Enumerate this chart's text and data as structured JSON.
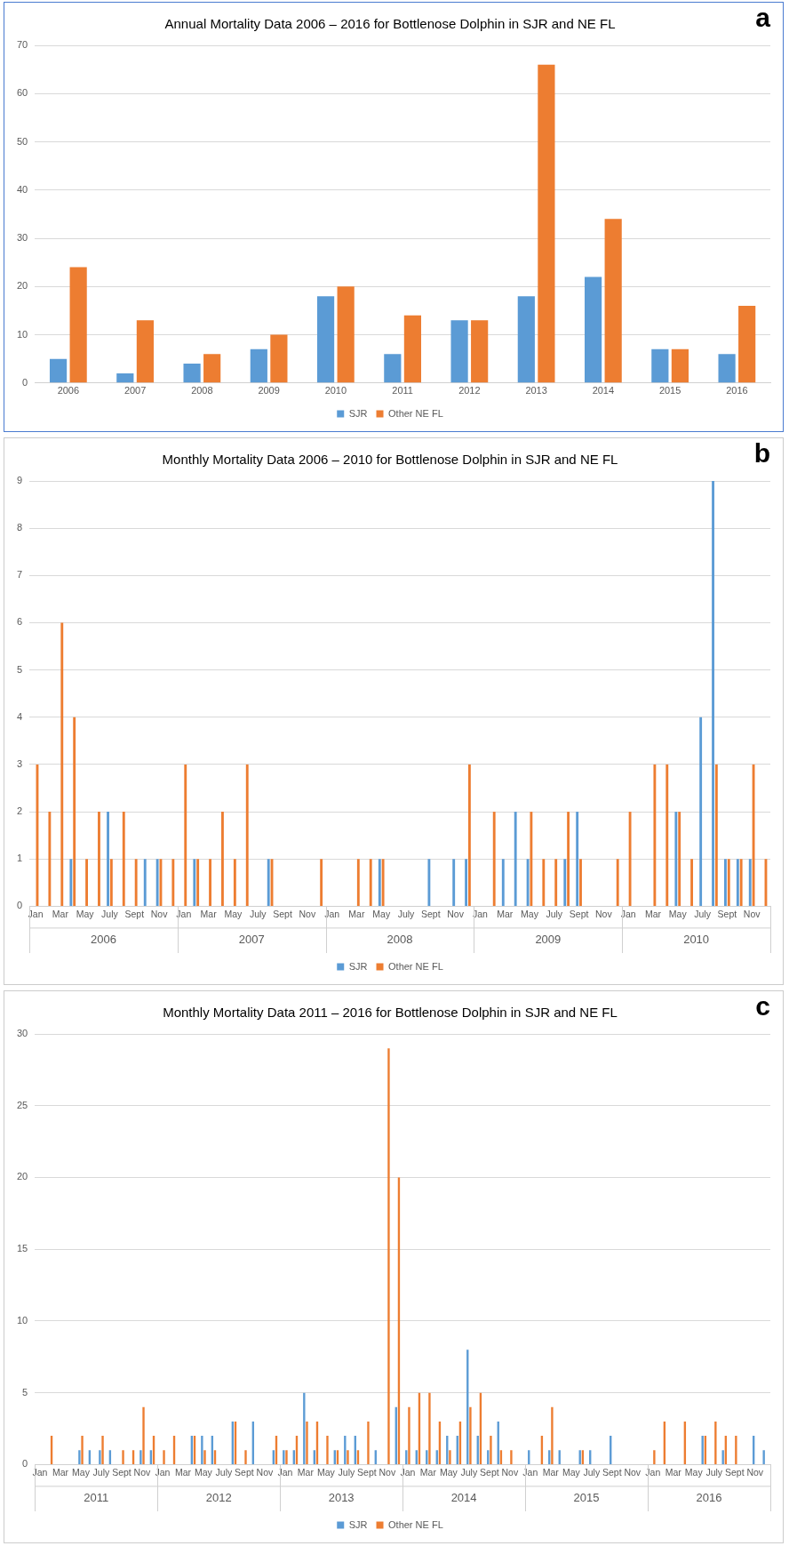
{
  "chart_data": [
    {
      "type": "bar",
      "title": "Annual Mortality Data 2006 – 2016 for Bottlenose Dolphin in SJR and NE FL",
      "subtitle": "a",
      "categories": [
        "2006",
        "2007",
        "2008",
        "2009",
        "2010",
        "2011",
        "2012",
        "2013",
        "2014",
        "2015",
        "2016"
      ],
      "series": [
        {
          "name": "SJR",
          "color": "#5b9bd5",
          "values": [
            5,
            2,
            4,
            7,
            18,
            6,
            13,
            18,
            22,
            7,
            6
          ]
        },
        {
          "name": "Other NE FL",
          "color": "#ed7d31",
          "values": [
            24,
            13,
            6,
            10,
            20,
            14,
            13,
            66,
            34,
            7,
            16
          ]
        }
      ],
      "ylim": [
        0,
        70
      ],
      "yticks": [
        0,
        10,
        20,
        30,
        40,
        50,
        60,
        70
      ],
      "grid": "y",
      "legend": "bottom"
    },
    {
      "type": "bar",
      "title": "Monthly Mortality Data 2006 – 2010 for Bottlenose Dolphin in SJR and NE FL",
      "subtitle": "b",
      "categories": [
        "Jan",
        null,
        "Mar",
        null,
        "May",
        null,
        "July",
        null,
        "Sept",
        null,
        "Nov",
        null,
        "Jan",
        null,
        "Mar",
        null,
        "May",
        null,
        "July",
        null,
        "Sept",
        null,
        "Nov",
        null,
        "Jan",
        null,
        "Mar",
        null,
        "May",
        null,
        "July",
        null,
        "Sept",
        null,
        "Nov",
        null,
        "Jan",
        null,
        "Mar",
        null,
        "May",
        null,
        "July",
        null,
        "Sept",
        null,
        "Nov",
        null,
        "Jan",
        null,
        "Mar",
        null,
        "May",
        null,
        "July",
        null,
        "Sept",
        null,
        "Nov",
        null
      ],
      "annotations": [
        "2006",
        "2007",
        "2008",
        "2009",
        "2010"
      ],
      "series": [
        {
          "name": "SJR",
          "color": "#5b9bd5",
          "values": [
            0,
            0,
            0,
            1,
            0,
            0,
            2,
            0,
            0,
            1,
            1,
            0,
            0,
            1,
            0,
            0,
            0,
            0,
            0,
            1,
            0,
            0,
            0,
            0,
            0,
            0,
            0,
            0,
            1,
            0,
            0,
            0,
            1,
            0,
            1,
            1,
            0,
            0,
            1,
            2,
            1,
            0,
            0,
            1,
            2,
            0,
            0,
            0,
            0,
            0,
            0,
            0,
            2,
            0,
            4,
            9,
            1,
            1,
            1,
            0
          ]
        },
        {
          "name": "Other NE FL",
          "color": "#ed7d31",
          "values": [
            3,
            2,
            6,
            4,
            1,
            2,
            1,
            2,
            1,
            0,
            1,
            1,
            3,
            1,
            1,
            2,
            1,
            3,
            0,
            1,
            0,
            0,
            0,
            1,
            0,
            0,
            1,
            1,
            1,
            0,
            0,
            0,
            0,
            0,
            0,
            3,
            0,
            2,
            0,
            0,
            2,
            1,
            1,
            2,
            1,
            0,
            0,
            1,
            2,
            0,
            3,
            3,
            2,
            1,
            0,
            3,
            1,
            1,
            3,
            1
          ]
        }
      ],
      "ylim": [
        0,
        9
      ],
      "yticks": [
        0,
        1,
        2,
        3,
        4,
        5,
        6,
        7,
        8,
        9
      ],
      "grid": "y",
      "legend": "bottom"
    },
    {
      "type": "bar",
      "title": "Monthly Mortality Data 2011 – 2016 for Bottlenose Dolphin in SJR and NE FL",
      "subtitle": "c",
      "categories": [
        "Jan",
        null,
        "Mar",
        null,
        "May",
        null,
        "July",
        null,
        "Sept",
        null,
        "Nov",
        null,
        "Jan",
        null,
        "Mar",
        null,
        "May",
        null,
        "July",
        null,
        "Sept",
        null,
        "Nov",
        null,
        "Jan",
        null,
        "Mar",
        null,
        "May",
        null,
        "July",
        null,
        "Sept",
        null,
        "Nov",
        null,
        "Jan",
        null,
        "Mar",
        null,
        "May",
        null,
        "July",
        null,
        "Sept",
        null,
        "Nov",
        null,
        "Jan",
        null,
        "Mar",
        null,
        "May",
        null,
        "July",
        null,
        "Sept",
        null,
        "Nov",
        null,
        "Jan",
        null,
        "Mar",
        null,
        "May",
        null,
        "July",
        null,
        "Sept",
        null,
        "Nov",
        null
      ],
      "annotations": [
        "2011",
        "2012",
        "2013",
        "2014",
        "2015",
        "2016"
      ],
      "series": [
        {
          "name": "SJR",
          "color": "#5b9bd5",
          "values": [
            0,
            0,
            0,
            0,
            1,
            1,
            1,
            1,
            0,
            0,
            1,
            1,
            0,
            0,
            0,
            2,
            2,
            2,
            0,
            3,
            0,
            3,
            0,
            1,
            1,
            1,
            5,
            1,
            0,
            1,
            2,
            2,
            0,
            1,
            0,
            4,
            1,
            1,
            1,
            1,
            2,
            2,
            8,
            2,
            1,
            3,
            0,
            0,
            1,
            0,
            1,
            1,
            0,
            1,
            1,
            0,
            2,
            0,
            0,
            0,
            0,
            0,
            0,
            0,
            0,
            2,
            0,
            1,
            0,
            0,
            2,
            1
          ]
        },
        {
          "name": "Other NE FL",
          "color": "#ed7d31",
          "values": [
            0,
            2,
            0,
            0,
            2,
            0,
            2,
            0,
            1,
            1,
            4,
            2,
            1,
            2,
            0,
            2,
            1,
            1,
            0,
            3,
            1,
            0,
            0,
            2,
            1,
            2,
            3,
            3,
            2,
            1,
            1,
            1,
            3,
            0,
            29,
            20,
            4,
            5,
            5,
            3,
            1,
            3,
            4,
            5,
            2,
            1,
            1,
            0,
            0,
            2,
            4,
            0,
            0,
            1,
            0,
            0,
            0,
            0,
            0,
            0,
            1,
            3,
            0,
            3,
            0,
            2,
            3,
            2,
            2,
            0,
            0,
            0
          ]
        }
      ],
      "ylim": [
        0,
        30
      ],
      "yticks": [
        0,
        5,
        10,
        15,
        20,
        25,
        30
      ],
      "grid": "y",
      "legend": "bottom"
    }
  ]
}
